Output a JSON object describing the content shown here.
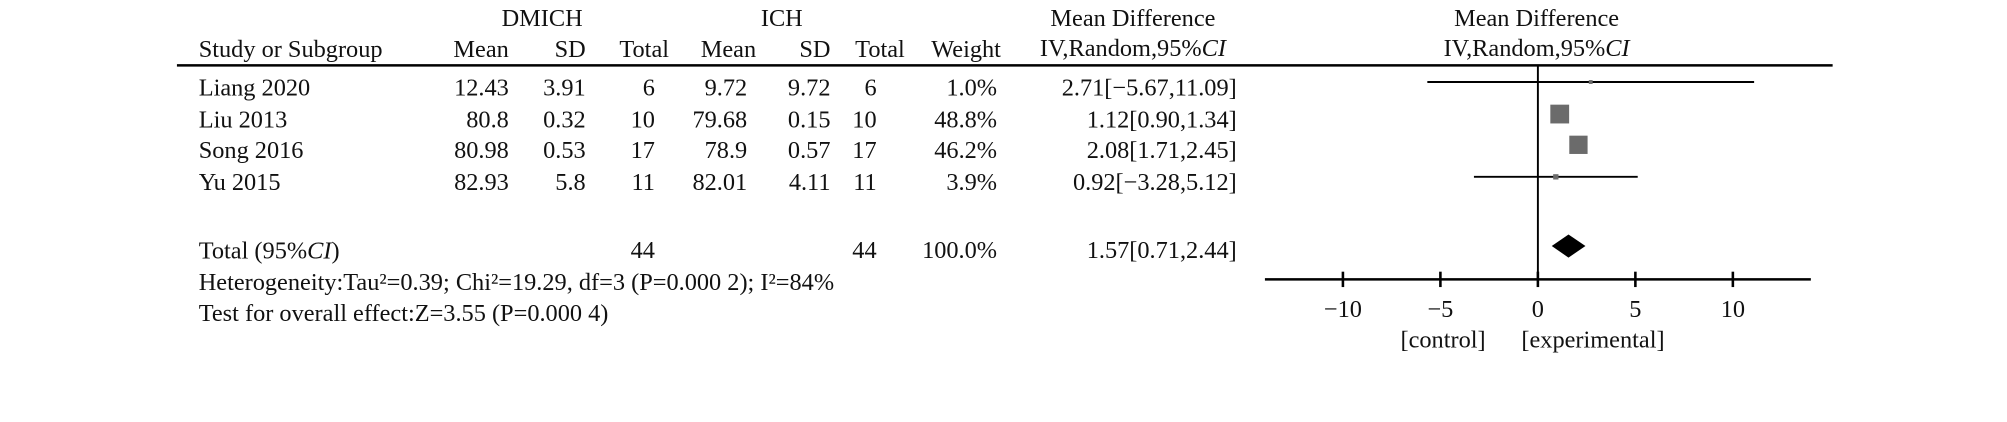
{
  "table": {
    "group_headers": [
      "DMICH",
      "ICH"
    ],
    "study_header": "Study or Subgroup",
    "column_headers": [
      "Mean",
      "SD",
      "Total",
      "Mean",
      "SD",
      "Total"
    ],
    "weight_header": "Weight",
    "rows": [
      [
        "12.43",
        "3.91",
        "6",
        "9.72",
        "9.72",
        "6"
      ],
      [
        "80.8",
        "0.32",
        "10",
        "79.68",
        "0.15",
        "10"
      ],
      [
        "80.98",
        "0.53",
        "17",
        "78.9",
        "0.57",
        "17"
      ],
      [
        "82.93",
        "5.8",
        "11",
        "82.01",
        "4.11",
        "11"
      ]
    ],
    "total_label": "Total (95%",
    "total_label_ci": "CI",
    "total_label_end": ")",
    "total_n": [
      "44",
      "44"
    ],
    "heterogeneity": "Heterogeneity:Tau²=0.39; Chi²=19.29, df=3 (P=0.000 2); I²=84%",
    "overall_effect": "Test for overall effect:Z=3.55 (P=0.000 4)"
  },
  "chart_data": {
    "type": "forest",
    "title": "Mean Difference",
    "subtitle": "IV,Random,95%",
    "subtitle_ci": "CI",
    "categories": [
      "Liang 2020",
      "Liu 2013",
      "Song 2016",
      "Yu 2015"
    ],
    "values": [
      2.71,
      1.12,
      2.08,
      0.92
    ],
    "lower": [
      -5.67,
      0.9,
      1.71,
      -3.28
    ],
    "upper": [
      11.09,
      1.34,
      2.45,
      5.12
    ],
    "value_labels": [
      "2.71[−5.67,11.09]",
      "1.12[0.90,1.34]",
      "2.08[1.71,2.45]",
      "0.92[−3.28,5.12]"
    ],
    "weights": [
      1.0,
      48.8,
      46.2,
      3.9
    ],
    "weight_labels": [
      "1.0%",
      "48.8%",
      "46.2%",
      "3.9%"
    ],
    "total": {
      "value": 1.57,
      "lower": 0.71,
      "upper": 2.44,
      "label": "1.57[0.71,2.44]",
      "weight": 100.0,
      "weight_label": "100.0%"
    },
    "xlim": [
      -14,
      14
    ],
    "xticks": [
      {
        "value": -10,
        "label": "−10"
      },
      {
        "value": -5,
        "label": "−5"
      },
      0,
      5,
      10
    ],
    "x_label_left": "[control]",
    "x_label_right": "[experimental]",
    "marker_color": "#6b6b6b",
    "line_color": "#000000"
  }
}
